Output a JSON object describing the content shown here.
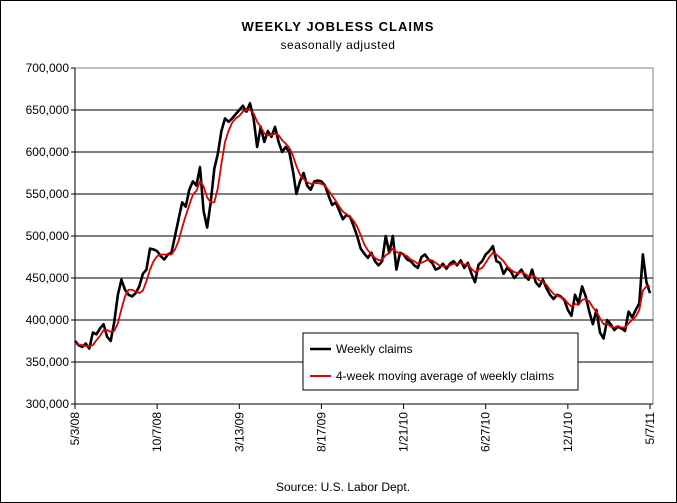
{
  "chart_data": {
    "type": "line",
    "title": "WEEKLY JOBLESS CLAIMS",
    "subtitle": "seasonally adjusted",
    "source": "Source: U.S. Labor Dept.",
    "xlabel": "",
    "ylabel": "",
    "ylim": [
      300000,
      700000
    ],
    "y_ticks": [
      300000,
      350000,
      400000,
      450000,
      500000,
      550000,
      600000,
      650000,
      700000
    ],
    "y_tick_labels": [
      "300,000",
      "350,000",
      "400,000",
      "450,000",
      "500,000",
      "550,000",
      "600,000",
      "650,000",
      "700,000"
    ],
    "x_tick_labels": [
      "5/3/08",
      "10/7/08",
      "3/13/09",
      "8/17/09",
      "1/21/10",
      "6/27/10",
      "12/1/10",
      "5/7/11"
    ],
    "grid": "horizontal",
    "legend_placement": "bottom-right",
    "series": [
      {
        "name": "Weekly claims",
        "color": "#000000",
        "values": [
          375000,
          370000,
          368000,
          372000,
          366000,
          385000,
          383000,
          390000,
          395000,
          380000,
          375000,
          398000,
          430000,
          448000,
          436000,
          430000,
          428000,
          432000,
          440000,
          455000,
          460000,
          485000,
          484000,
          482000,
          476000,
          472000,
          478000,
          480000,
          500000,
          520000,
          540000,
          535000,
          555000,
          565000,
          560000,
          582000,
          530000,
          510000,
          540000,
          580000,
          598000,
          625000,
          640000,
          636000,
          640000,
          645000,
          650000,
          655000,
          648000,
          658000,
          640000,
          606000,
          630000,
          612000,
          625000,
          618000,
          630000,
          612000,
          600000,
          606000,
          600000,
          578000,
          550000,
          565000,
          575000,
          560000,
          555000,
          565000,
          566000,
          565000,
          560000,
          548000,
          537000,
          540000,
          530000,
          520000,
          525000,
          523000,
          512000,
          500000,
          485000,
          479000,
          474000,
          480000,
          470000,
          465000,
          470000,
          500000,
          480000,
          500000,
          460000,
          480000,
          478000,
          472000,
          470000,
          465000,
          462000,
          475000,
          478000,
          472000,
          468000,
          460000,
          462000,
          467000,
          461000,
          467000,
          470000,
          465000,
          471000,
          462000,
          468000,
          455000,
          445000,
          466000,
          470000,
          478000,
          482000,
          488000,
          470000,
          468000,
          455000,
          462000,
          458000,
          450000,
          455000,
          460000,
          452000,
          448000,
          460000,
          445000,
          440000,
          448000,
          438000,
          430000,
          425000,
          430000,
          428000,
          424000,
          412000,
          405000,
          430000,
          420000,
          440000,
          428000,
          410000,
          395000,
          412000,
          385000,
          378000,
          400000,
          395000,
          388000,
          392000,
          390000,
          387000,
          410000,
          403000,
          412000,
          420000,
          478000,
          445000,
          432000
        ]
      },
      {
        "name": "4-week moving average of weekly claims",
        "color": "#e00000",
        "values": [
          372000,
          371000,
          370000,
          369000,
          369000,
          370000,
          376000,
          381000,
          388000,
          388000,
          386000,
          387000,
          396000,
          413000,
          428000,
          436000,
          436000,
          434000,
          432000,
          435000,
          446000,
          460000,
          470000,
          476000,
          478000,
          478000,
          478000,
          478000,
          484000,
          494000,
          510000,
          524000,
          537000,
          549000,
          554000,
          565000,
          559000,
          546000,
          540000,
          540000,
          557000,
          586000,
          612000,
          625000,
          635000,
          640000,
          643000,
          648000,
          650000,
          650000,
          646000,
          636000,
          630000,
          622000,
          620000,
          620000,
          622000,
          620000,
          614000,
          610000,
          605000,
          596000,
          583000,
          573000,
          568000,
          564000,
          562000,
          563000,
          563000,
          562000,
          560000,
          554000,
          548000,
          542000,
          535000,
          529000,
          526000,
          523000,
          518000,
          511000,
          501000,
          490000,
          483000,
          478000,
          474000,
          471000,
          472000,
          477000,
          480000,
          485000,
          481000,
          479000,
          478000,
          476000,
          472000,
          470000,
          467000,
          468000,
          470000,
          472000,
          471000,
          468000,
          465000,
          464000,
          464000,
          465000,
          467000,
          467000,
          468000,
          466000,
          466000,
          461000,
          457000,
          460000,
          462000,
          468000,
          475000,
          480000,
          478000,
          474000,
          470000,
          464000,
          460000,
          457000,
          456000,
          457000,
          455000,
          452000,
          453000,
          451000,
          447000,
          445000,
          442000,
          436000,
          431000,
          429000,
          427000,
          425000,
          420000,
          416000,
          419000,
          418000,
          424000,
          425000,
          422000,
          415000,
          410000,
          402000,
          395000,
          396000,
          392000,
          391000,
          393000,
          391000,
          391000,
          396000,
          400000,
          404000,
          412000,
          435000,
          440000,
          440000
        ]
      }
    ]
  }
}
